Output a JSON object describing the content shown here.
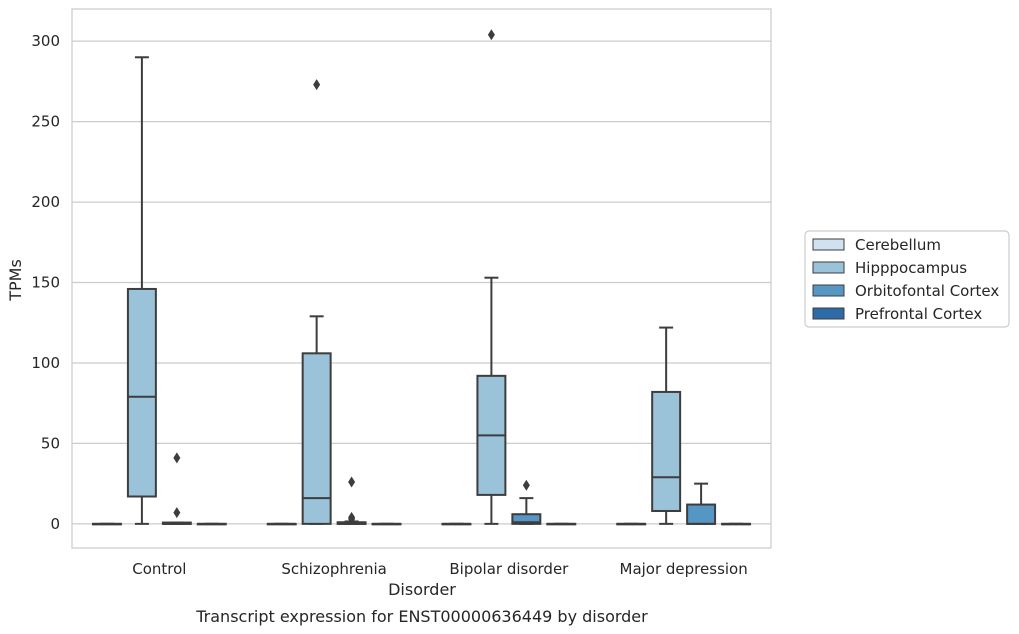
{
  "chart_data": {
    "type": "box",
    "xlabel": "Disorder",
    "ylabel": "TPMs",
    "caption": "Transcript expression for ENST00000636449 by disorder",
    "categories": [
      "Control",
      "Schizophrenia",
      "Bipolar disorder",
      "Major depression"
    ],
    "ylim": [
      -15,
      320
    ],
    "yticks": [
      0,
      50,
      100,
      150,
      200,
      250,
      300
    ],
    "grid": "horizontal",
    "legend_position": "right",
    "series": [
      {
        "name": "Cerebellum",
        "color": "#d0e1f2",
        "boxes": [
          {
            "q1": 0,
            "median": 0,
            "q3": 0,
            "whisker_low": 0,
            "whisker_high": 0,
            "outliers": []
          },
          {
            "q1": 0,
            "median": 0,
            "q3": 0,
            "whisker_low": 0,
            "whisker_high": 0,
            "outliers": []
          },
          {
            "q1": 0,
            "median": 0,
            "q3": 0,
            "whisker_low": 0,
            "whisker_high": 0,
            "outliers": []
          },
          {
            "q1": 0,
            "median": 0,
            "q3": 0,
            "whisker_low": 0,
            "whisker_high": 0,
            "outliers": []
          }
        ]
      },
      {
        "name": "Hipppocampus",
        "color": "#9ac2d9",
        "boxes": [
          {
            "q1": 17,
            "median": 79,
            "q3": 146,
            "whisker_low": 0,
            "whisker_high": 290,
            "outliers": []
          },
          {
            "q1": 0,
            "median": 16,
            "q3": 106,
            "whisker_low": 0,
            "whisker_high": 129,
            "outliers": [
              273
            ]
          },
          {
            "q1": 18,
            "median": 55,
            "q3": 92,
            "whisker_low": 0,
            "whisker_high": 153,
            "outliers": [
              304
            ]
          },
          {
            "q1": 8,
            "median": 29,
            "q3": 82,
            "whisker_low": 0,
            "whisker_high": 122,
            "outliers": []
          }
        ]
      },
      {
        "name": "Orbitofontal Cortex",
        "color": "#5596c4",
        "boxes": [
          {
            "q1": 0,
            "median": 0,
            "q3": 0.8,
            "whisker_low": 0,
            "whisker_high": 0.8,
            "outliers": [
              7,
              41
            ]
          },
          {
            "q1": 0,
            "median": 0,
            "q3": 1,
            "whisker_low": 0,
            "whisker_high": 1.5,
            "outliers": [
              3,
              4,
              26
            ]
          },
          {
            "q1": 0,
            "median": 1,
            "q3": 6,
            "whisker_low": 0,
            "whisker_high": 16,
            "outliers": [
              24
            ]
          },
          {
            "q1": 0,
            "median": 0,
            "q3": 12,
            "whisker_low": 0,
            "whisker_high": 25,
            "outliers": []
          }
        ]
      },
      {
        "name": "Prefrontal Cortex",
        "color": "#2d6aa8",
        "boxes": [
          {
            "q1": 0,
            "median": 0,
            "q3": 0,
            "whisker_low": 0,
            "whisker_high": 0,
            "outliers": []
          },
          {
            "q1": 0,
            "median": 0,
            "q3": 0,
            "whisker_low": 0,
            "whisker_high": 0,
            "outliers": []
          },
          {
            "q1": 0,
            "median": 0,
            "q3": 0,
            "whisker_low": 0,
            "whisker_high": 0,
            "outliers": []
          },
          {
            "q1": 0,
            "median": 0,
            "q3": 0,
            "whisker_low": 0,
            "whisker_high": 0,
            "outliers": []
          }
        ]
      }
    ]
  }
}
